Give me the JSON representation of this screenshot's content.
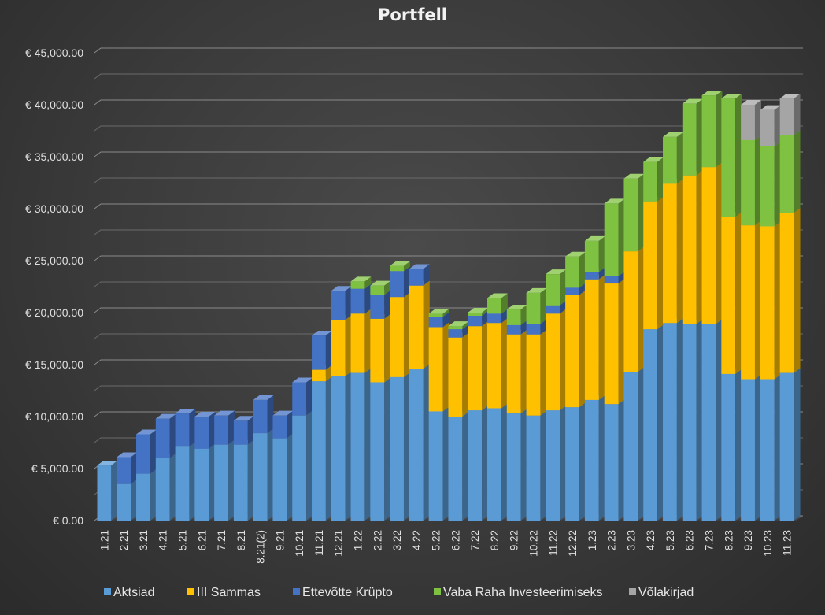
{
  "chart_data": {
    "type": "bar",
    "stacked": true,
    "three_d": true,
    "title": "Portfell",
    "xlabel": "",
    "ylabel": "",
    "ylim": [
      0,
      45000
    ],
    "y_tick_step": 5000,
    "y_tick_labels": [
      "€ 0.00",
      "€ 5,000.00",
      "€ 10,000.00",
      "€ 15,000.00",
      "€ 20,000.00",
      "€ 25,000.00",
      "€ 30,000.00",
      "€ 35,000.00",
      "€ 40,000.00",
      "€ 45,000.00"
    ],
    "grid": true,
    "legend_position": "bottom",
    "categories": [
      "1.21",
      "2.21",
      "3.21",
      "4.21",
      "5.21",
      "6.21",
      "7.21",
      "8.21",
      "8.21(2)",
      "9.21",
      "10.21",
      "11.21",
      "12.21",
      "1.22",
      "2.22",
      "3.22",
      "4.22",
      "5.22",
      "6.22",
      "7.22",
      "8.22",
      "9.22",
      "10.22",
      "11.22",
      "12.22",
      "1.23",
      "2.23",
      "3.23",
      "4.23",
      "5.23",
      "6.23",
      "7.23",
      "8.23",
      "9.23",
      "10.23",
      "11.23"
    ],
    "series": [
      {
        "name": "Aktsiad",
        "color": "#5b9bd5",
        "values": [
          5300,
          3500,
          4500,
          6000,
          7100,
          6900,
          7300,
          7300,
          8400,
          7900,
          10100,
          13400,
          13900,
          14200,
          13300,
          13800,
          14600,
          10500,
          10000,
          10600,
          10800,
          10300,
          10100,
          10600,
          10900,
          11600,
          11200,
          14300,
          18400,
          19000,
          18900,
          18900,
          14100,
          13600,
          13600,
          14200
        ]
      },
      {
        "name": "III Sammas",
        "color": "#ffc000",
        "values": [
          0,
          0,
          0,
          0,
          0,
          0,
          0,
          0,
          0,
          0,
          0,
          1100,
          5400,
          5700,
          6100,
          7700,
          8000,
          8100,
          7600,
          8100,
          8200,
          7600,
          7800,
          9300,
          10800,
          11600,
          11600,
          11600,
          12300,
          13400,
          14300,
          15100,
          15100,
          14800,
          14700,
          15400
        ]
      },
      {
        "name": "Ettevõtte Krüpto",
        "color": "#4472c4",
        "values": [
          0,
          2600,
          3800,
          3800,
          3200,
          3100,
          2800,
          2300,
          3200,
          2200,
          3200,
          3300,
          2800,
          2400,
          2300,
          2500,
          1600,
          1000,
          800,
          1000,
          900,
          900,
          1000,
          800,
          700,
          700,
          700,
          0,
          0,
          0,
          0,
          0,
          0,
          0,
          0,
          0
        ]
      },
      {
        "name": "Vaba Raha Investeerimiseks",
        "color": "#7fc241",
        "values": [
          0,
          0,
          0,
          0,
          0,
          0,
          0,
          0,
          0,
          0,
          0,
          0,
          0,
          700,
          900,
          500,
          0,
          300,
          300,
          300,
          1500,
          1500,
          3000,
          3000,
          3000,
          3000,
          7000,
          7000,
          3800,
          4500,
          6900,
          6900,
          11400,
          8200,
          7700,
          7500
        ]
      },
      {
        "name": "Võlakirjad",
        "color": "#a5a5a5",
        "values": [
          0,
          0,
          0,
          0,
          0,
          0,
          0,
          0,
          0,
          0,
          0,
          0,
          0,
          0,
          0,
          0,
          0,
          0,
          0,
          0,
          0,
          0,
          0,
          0,
          0,
          0,
          0,
          0,
          0,
          0,
          0,
          0,
          0,
          3400,
          3500,
          3500
        ]
      }
    ]
  }
}
